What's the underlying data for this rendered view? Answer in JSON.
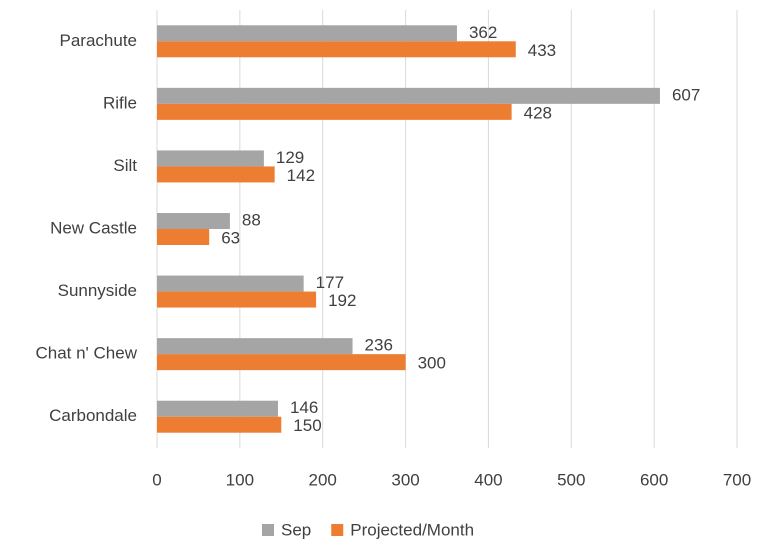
{
  "chart_data": {
    "type": "bar",
    "orientation": "horizontal",
    "categories": [
      "Parachute",
      "Rifle",
      "Silt",
      "New Castle",
      "Sunnyside",
      "Chat n' Chew",
      "Carbondale"
    ],
    "series": [
      {
        "name": "Sep",
        "color": "#a5a5a5",
        "values": [
          362,
          607,
          129,
          88,
          177,
          236,
          146
        ]
      },
      {
        "name": "Projected/Month",
        "color": "#ed7d31",
        "values": [
          433,
          428,
          142,
          63,
          192,
          300,
          150
        ]
      }
    ],
    "xlim": [
      0,
      700
    ],
    "xticks": [
      0,
      100,
      200,
      300,
      400,
      500,
      600,
      700
    ],
    "grid": true,
    "legend": "bottom"
  }
}
